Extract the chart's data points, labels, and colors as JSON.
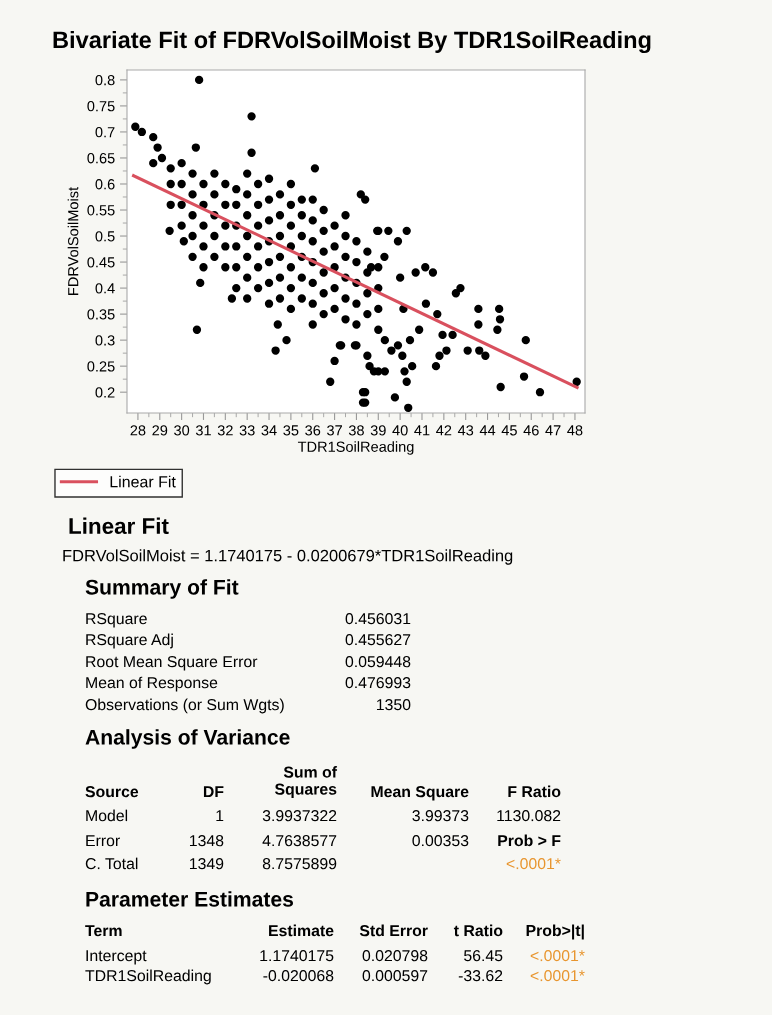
{
  "chart_data": {
    "type": "scatter",
    "title": "Bivariate Fit of FDRVolSoilMoist By TDR1SoilReading",
    "xlabel": "TDR1SoilReading",
    "ylabel": "FDRVolSoilMoist",
    "xlim": [
      27.5,
      48.46
    ],
    "xticks": [
      28,
      29,
      30,
      31,
      32,
      33,
      34,
      35,
      36,
      37,
      38,
      39,
      40,
      41,
      42,
      43,
      44,
      45,
      46,
      47,
      48
    ],
    "ylim": [
      0.16,
      0.819
    ],
    "yticks": [
      0.2,
      0.25,
      0.3,
      0.35,
      0.4,
      0.45,
      0.5,
      0.55,
      0.6,
      0.65,
      0.7,
      0.75,
      0.8
    ],
    "grid": false,
    "legend": "bottom left",
    "series": [
      {
        "color": "#000000",
        "marker": "circle",
        "x": [
          27.88,
          28.18,
          28.7,
          28.9,
          28.7,
          29.1,
          29.45,
          30.7,
          30.85,
          30.8,
          30.65,
          33.2,
          33.2,
          30.5,
          30.1,
          32.3,
          34.3,
          34.8,
          34.4,
          36.8,
          37.0,
          36.1,
          38.4,
          38.4,
          38.2,
          38.4,
          37.3,
          38.0,
          38.5,
          38.6,
          38.8,
          38.95,
          48.08,
          46.4,
          45.67,
          45.75,
          44.6,
          44.53,
          44.57,
          44.45,
          43.58,
          43.58,
          43.62,
          43.9,
          43.09,
          42.55,
          42.76,
          42.4,
          41.94,
          42.12,
          41.7,
          41.64,
          41.8,
          41.18,
          41.15,
          41.5,
          40.71,
          40.3,
          40.37,
          40.3,
          40.2,
          40.55,
          39.76,
          40.1,
          39.9,
          39.9,
          39.46,
          39.0,
          38.3,
          38.3,
          39.0,
          39.3,
          39.3,
          39.6,
          40.45,
          40.87,
          40.15,
          40.0,
          39.28,
          38.67,
          37.24,
          37.93,
          29.5,
          29.5,
          29.5,
          30,
          30,
          30,
          30,
          30.5,
          30.5,
          30.5,
          30.5,
          31,
          31,
          31,
          31,
          31,
          31.5,
          31.5,
          31.5,
          31.5,
          31.5,
          32,
          32,
          32,
          32,
          32,
          32.5,
          32.5,
          32.5,
          32.5,
          32.5,
          32.5,
          33,
          33,
          33,
          33,
          33,
          33,
          33,
          33.5,
          33.5,
          33.5,
          33.5,
          33.5,
          33.5,
          34,
          34,
          34,
          34,
          34,
          34,
          34,
          34.5,
          34.5,
          34.5,
          34.5,
          34.5,
          34.5,
          35,
          35,
          35,
          35,
          35,
          35,
          35,
          35.5,
          35.5,
          35.5,
          35.5,
          35.5,
          35.5,
          36,
          36,
          36,
          36,
          36,
          36,
          36,
          36.5,
          36.5,
          36.5,
          36.5,
          36.5,
          36.5,
          37,
          37,
          37,
          37,
          37,
          37.5,
          37.5,
          37.5,
          37.5,
          37.5,
          37.5,
          38,
          38,
          38,
          38,
          38,
          38.5,
          38.5,
          38.5,
          38.5,
          39,
          39,
          39,
          39
        ],
        "values": [
          0.71,
          0.7,
          0.69,
          0.67,
          0.64,
          0.65,
          0.51,
          0.32,
          0.41,
          0.8,
          0.67,
          0.73,
          0.66,
          0.46,
          0.49,
          0.38,
          0.28,
          0.3,
          0.33,
          0.22,
          0.26,
          0.63,
          0.2,
          0.18,
          0.58,
          0.57,
          0.29,
          0.29,
          0.27,
          0.25,
          0.24,
          0.51,
          0.22,
          0.2,
          0.23,
          0.3,
          0.21,
          0.36,
          0.34,
          0.32,
          0.36,
          0.33,
          0.28,
          0.27,
          0.28,
          0.39,
          0.4,
          0.31,
          0.31,
          0.28,
          0.35,
          0.25,
          0.27,
          0.37,
          0.44,
          0.43,
          0.43,
          0.51,
          0.17,
          0.22,
          0.24,
          0.25,
          0.19,
          0.27,
          0.29,
          0.49,
          0.51,
          0.51,
          0.2,
          0.18,
          0.24,
          0.24,
          0.3,
          0.28,
          0.3,
          0.32,
          0.36,
          0.42,
          0.46,
          0.44,
          0.29,
          0.29,
          0.56,
          0.6,
          0.63,
          0.52,
          0.56,
          0.6,
          0.64,
          0.5,
          0.54,
          0.58,
          0.62,
          0.44,
          0.48,
          0.52,
          0.56,
          0.6,
          0.46,
          0.5,
          0.54,
          0.58,
          0.62,
          0.44,
          0.48,
          0.52,
          0.56,
          0.6,
          0.4,
          0.44,
          0.48,
          0.52,
          0.56,
          0.59,
          0.38,
          0.42,
          0.46,
          0.5,
          0.54,
          0.58,
          0.62,
          0.4,
          0.44,
          0.48,
          0.52,
          0.56,
          0.6,
          0.37,
          0.41,
          0.45,
          0.49,
          0.53,
          0.57,
          0.61,
          0.38,
          0.42,
          0.46,
          0.5,
          0.54,
          0.58,
          0.36,
          0.4,
          0.44,
          0.48,
          0.52,
          0.56,
          0.6,
          0.38,
          0.42,
          0.46,
          0.5,
          0.54,
          0.57,
          0.33,
          0.37,
          0.41,
          0.45,
          0.49,
          0.53,
          0.57,
          0.35,
          0.39,
          0.43,
          0.47,
          0.51,
          0.55,
          0.36,
          0.4,
          0.44,
          0.48,
          0.52,
          0.34,
          0.38,
          0.42,
          0.46,
          0.5,
          0.54,
          0.33,
          0.37,
          0.41,
          0.45,
          0.49,
          0.35,
          0.39,
          0.43,
          0.47,
          0.32,
          0.36,
          0.4,
          0.44
        ]
      },
      {
        "type": "line",
        "name": "Linear Fit",
        "color": "#d9505e",
        "x": [
          27.8,
          48.1
        ],
        "values": [
          0.616,
          0.209
        ]
      }
    ],
    "annotations": [
      "Linear Fit",
      "FDRVolSoilMoist = 1.1740175 - 0.0200679*TDR1SoilReading",
      "Summary of Fit",
      "RSquare",
      "0.456031",
      "RSquare Adj",
      "0.455627",
      "Root Mean Square Error",
      "0.059448",
      "Mean of Response",
      "0.476993",
      "Observations (or Sum Wgts)",
      "1350",
      "Analysis of Variance",
      "Source",
      "DF",
      "Sum of\nSquares",
      "Mean Square",
      "F Ratio",
      "Model",
      "1",
      "3.9937322",
      "3.99373",
      "1130.082",
      "Error",
      "1348",
      "4.7638577",
      "0.00353",
      "Prob > F",
      "C. Total",
      "1349",
      "8.7575899",
      "<.0001*",
      "Parameter Estimates",
      "Term",
      "Estimate",
      "Std Error",
      "t Ratio",
      "Prob>|t|",
      "Intercept",
      "1.1740175",
      "0.020798",
      "56.45",
      "<.0001*",
      "TDR1SoilReading",
      "-0.020068",
      "0.000597",
      "-33.62",
      "<.0001*"
    ]
  }
}
